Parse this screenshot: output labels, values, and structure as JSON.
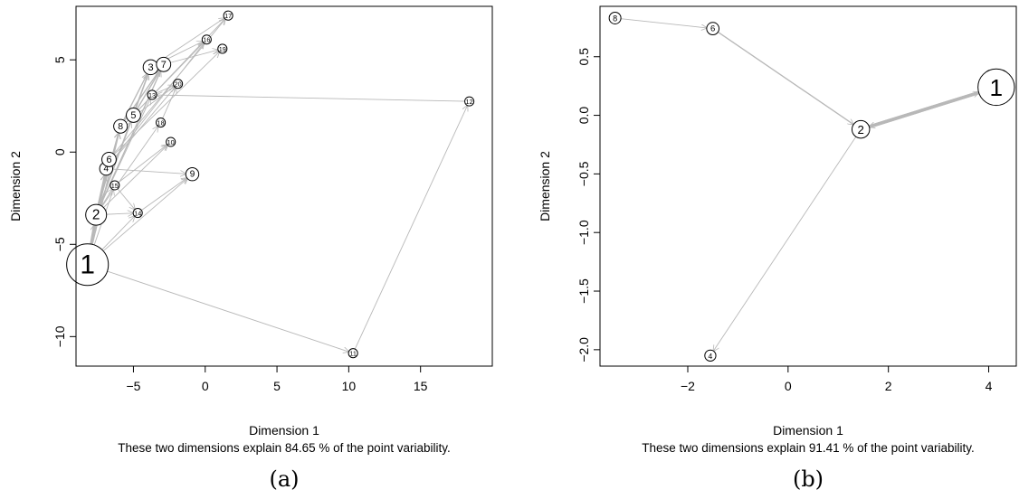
{
  "chart_data": [
    {
      "type": "scatter",
      "panel_label": "(a)",
      "xlabel": "Dimension 1",
      "ylabel": "Dimension 2",
      "caption": "These two dimensions explain 84.65 % of the point variability.",
      "xlim": [
        -9,
        20
      ],
      "ylim": [
        -11.6,
        7.9
      ],
      "xticks": [
        -5,
        0,
        5,
        10,
        15
      ],
      "yticks": [
        -10,
        -5,
        0,
        5
      ],
      "tick_labels_x": [
        "−5",
        "0",
        "5",
        "10",
        "15"
      ],
      "tick_labels_y": [
        "−10",
        "−5",
        "0",
        "5"
      ],
      "edge_color": "#b8b8b8",
      "points": [
        {
          "label": "1",
          "x": -8.2,
          "y": -6.1,
          "size": 3.2
        },
        {
          "label": "2",
          "x": -7.6,
          "y": -3.4,
          "size": 1.6
        },
        {
          "label": "3",
          "x": -3.8,
          "y": 4.6,
          "size": 1.15
        },
        {
          "label": "4",
          "x": -6.9,
          "y": -0.9,
          "size": 1.0
        },
        {
          "label": "5",
          "x": -5.0,
          "y": 2.0,
          "size": 1.1
        },
        {
          "label": "6",
          "x": -6.7,
          "y": -0.4,
          "size": 1.1
        },
        {
          "label": "7",
          "x": -2.9,
          "y": 4.75,
          "size": 1.1
        },
        {
          "label": "8",
          "x": -5.9,
          "y": 1.4,
          "size": 1.05
        },
        {
          "label": "9",
          "x": -0.9,
          "y": -1.2,
          "size": 1.0
        },
        {
          "label": "10",
          "x": -2.4,
          "y": 0.55,
          "size": 0.7
        },
        {
          "label": "11",
          "x": 10.3,
          "y": -10.9,
          "size": 0.7
        },
        {
          "label": "12",
          "x": 18.4,
          "y": 2.75,
          "size": 0.7
        },
        {
          "label": "13",
          "x": -3.7,
          "y": 3.1,
          "size": 0.7
        },
        {
          "label": "14",
          "x": -4.7,
          "y": -3.3,
          "size": 0.7
        },
        {
          "label": "15",
          "x": -6.3,
          "y": -1.8,
          "size": 0.7
        },
        {
          "label": "16",
          "x": 0.1,
          "y": 6.1,
          "size": 0.7
        },
        {
          "label": "17",
          "x": 1.6,
          "y": 7.4,
          "size": 0.7
        },
        {
          "label": "18",
          "x": -3.1,
          "y": 1.6,
          "size": 0.7
        },
        {
          "label": "19",
          "x": 1.2,
          "y": 5.6,
          "size": 0.7
        },
        {
          "label": "20",
          "x": -1.9,
          "y": 3.7,
          "size": 0.7
        }
      ],
      "edges": [
        {
          "from": "1",
          "to": "11",
          "weight": 1
        },
        {
          "from": "11",
          "to": "12",
          "weight": 1
        },
        {
          "from": "12",
          "to": "13",
          "weight": 1
        },
        {
          "from": "1",
          "to": "2",
          "weight": 3
        },
        {
          "from": "1",
          "to": "14",
          "weight": 1
        },
        {
          "from": "1",
          "to": "9",
          "weight": 1
        },
        {
          "from": "2",
          "to": "14",
          "weight": 1
        },
        {
          "from": "2",
          "to": "15",
          "weight": 1
        },
        {
          "from": "2",
          "to": "4",
          "weight": 2
        },
        {
          "from": "2",
          "to": "6",
          "weight": 2
        },
        {
          "from": "2",
          "to": "8",
          "weight": 2
        },
        {
          "from": "2",
          "to": "5",
          "weight": 1.5
        },
        {
          "from": "2",
          "to": "3",
          "weight": 1.5
        },
        {
          "from": "2",
          "to": "7",
          "weight": 1.5
        },
        {
          "from": "2",
          "to": "18",
          "weight": 1
        },
        {
          "from": "2",
          "to": "10",
          "weight": 1
        },
        {
          "from": "2",
          "to": "13",
          "weight": 1
        },
        {
          "from": "4",
          "to": "9",
          "weight": 1
        },
        {
          "from": "4",
          "to": "16",
          "weight": 1
        },
        {
          "from": "4",
          "to": "20",
          "weight": 1
        },
        {
          "from": "15",
          "to": "14",
          "weight": 1
        },
        {
          "from": "6",
          "to": "17",
          "weight": 1
        },
        {
          "from": "6",
          "to": "19",
          "weight": 1
        },
        {
          "from": "8",
          "to": "3",
          "weight": 1.5
        },
        {
          "from": "8",
          "to": "7",
          "weight": 1.5
        },
        {
          "from": "8",
          "to": "20",
          "weight": 1
        },
        {
          "from": "5",
          "to": "3",
          "weight": 1.5
        },
        {
          "from": "5",
          "to": "7",
          "weight": 1.5
        },
        {
          "from": "5",
          "to": "17",
          "weight": 1
        },
        {
          "from": "5",
          "to": "16",
          "weight": 1
        },
        {
          "from": "3",
          "to": "16",
          "weight": 1
        },
        {
          "from": "3",
          "to": "17",
          "weight": 1
        },
        {
          "from": "7",
          "to": "19",
          "weight": 1
        },
        {
          "from": "13",
          "to": "20",
          "weight": 1
        },
        {
          "from": "18",
          "to": "20",
          "weight": 1
        },
        {
          "from": "15",
          "to": "10",
          "weight": 1
        },
        {
          "from": "14",
          "to": "9",
          "weight": 1
        },
        {
          "from": "1",
          "to": "15",
          "weight": 1
        },
        {
          "from": "1",
          "to": "4",
          "weight": 1.5
        },
        {
          "from": "1",
          "to": "6",
          "weight": 1.5
        },
        {
          "from": "1",
          "to": "8",
          "weight": 1.5
        }
      ]
    },
    {
      "type": "scatter",
      "panel_label": "(b)",
      "xlabel": "Dimension 1",
      "ylabel": "Dimension 2",
      "caption": "These two dimensions explain 91.41 % of the point variability.",
      "xlim": [
        -3.75,
        4.55
      ],
      "ylim": [
        -2.14,
        0.93
      ],
      "xticks": [
        -2,
        0,
        2,
        4
      ],
      "yticks": [
        -2.0,
        -1.5,
        -1.0,
        -0.5,
        0.0,
        0.5
      ],
      "tick_labels_x": [
        "−2",
        "0",
        "2",
        "4"
      ],
      "tick_labels_y": [
        "−2.0",
        "−1.5",
        "−1.0",
        "−0.5",
        "0.0",
        "0.5"
      ],
      "edge_color": "#b8b8b8",
      "points": [
        {
          "label": "1",
          "x": 4.15,
          "y": 0.24,
          "size": 2.8
        },
        {
          "label": "2",
          "x": 1.45,
          "y": -0.12,
          "size": 1.35
        },
        {
          "label": "4",
          "x": -1.55,
          "y": -2.05,
          "size": 0.85
        },
        {
          "label": "6",
          "x": -1.5,
          "y": 0.74,
          "size": 0.95
        },
        {
          "label": "8",
          "x": -3.45,
          "y": 0.83,
          "size": 0.9
        }
      ],
      "edges": [
        {
          "from": "8",
          "to": "6",
          "weight": 1
        },
        {
          "from": "6",
          "to": "2",
          "weight": 1.5
        },
        {
          "from": "1",
          "to": "2",
          "weight": 4
        },
        {
          "from": "2",
          "to": "1",
          "weight": 4
        },
        {
          "from": "2",
          "to": "4",
          "weight": 1
        }
      ]
    }
  ]
}
